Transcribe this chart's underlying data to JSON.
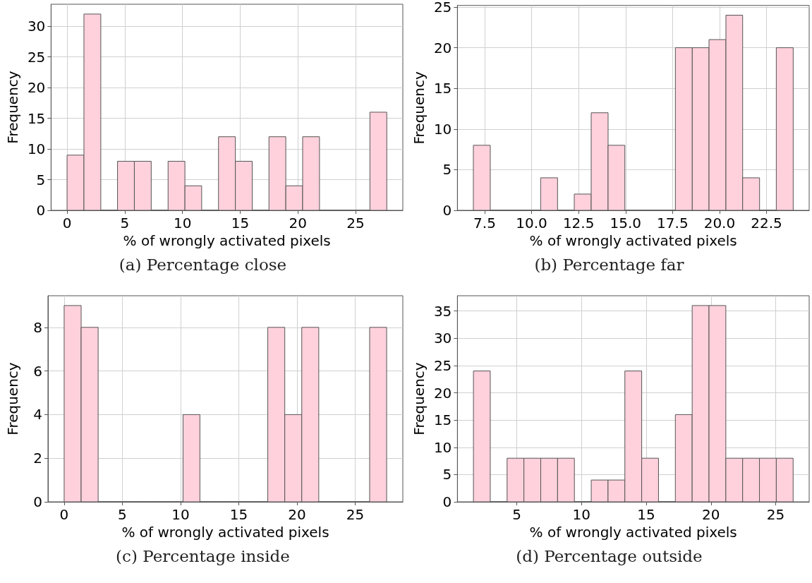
{
  "chart_data": [
    {
      "type": "histogram",
      "xlabel": "% of wrongly activated pixels",
      "ylabel": "Frequency",
      "annotations": [
        "(a) Percentage close"
      ],
      "color": "#ffd1dc",
      "grid": true,
      "bins": [
        0,
        1.46,
        2.92,
        4.37,
        5.83,
        7.29,
        8.75,
        10.21,
        11.66,
        13.12,
        14.58,
        16.04,
        17.49,
        18.95,
        20.41,
        21.87,
        23.33,
        24.78,
        26.24,
        27.7
      ],
      "values": [
        9,
        32,
        0,
        8,
        8,
        0,
        8,
        4,
        0,
        12,
        8,
        0,
        12,
        4,
        12,
        0,
        0,
        0,
        16
      ],
      "xlim": [
        -1.39,
        29.09
      ],
      "xticks": [
        0,
        5,
        10,
        15,
        20,
        25
      ],
      "ylim": [
        0,
        33.6
      ],
      "yticks": [
        0,
        5,
        10,
        15,
        20,
        25,
        30
      ]
    },
    {
      "type": "histogram",
      "xlabel": "% of wrongly activated pixels",
      "ylabel": "Frequency",
      "annotations": [
        "(b) Percentage far"
      ],
      "color": "#ffd1dc",
      "grid": true,
      "bins": [
        6.9,
        7.8,
        8.69,
        9.59,
        10.48,
        11.38,
        12.27,
        13.17,
        14.07,
        14.96,
        15.86,
        16.75,
        17.65,
        18.55,
        19.44,
        20.34,
        21.23,
        22.13,
        23.02,
        23.92
      ],
      "values": [
        8,
        0,
        0,
        0,
        4,
        0,
        2,
        12,
        8,
        0,
        0,
        0,
        20,
        20,
        21,
        24,
        4,
        0,
        20
      ],
      "xlim": [
        6.05,
        24.77
      ],
      "xticks": [
        7.5,
        {
          "value": 10,
          "label": "10.0"
        },
        12.5,
        {
          "value": 15,
          "label": "15.0"
        },
        17.5,
        {
          "value": 20,
          "label": "20.0"
        },
        22.5
      ],
      "ylim": [
        0,
        25.2
      ],
      "yticks": [
        0,
        5,
        10,
        15,
        20,
        25
      ]
    },
    {
      "type": "histogram",
      "xlabel": "% of wrongly activated pixels",
      "ylabel": "Frequency",
      "annotations": [
        "(c) Percentage inside"
      ],
      "color": "#ffd1dc",
      "grid": true,
      "bins": [
        0,
        1.46,
        2.92,
        4.37,
        5.83,
        7.29,
        8.75,
        10.21,
        11.66,
        13.12,
        14.58,
        16.04,
        17.49,
        18.95,
        20.41,
        21.87,
        23.33,
        24.78,
        26.24,
        27.7
      ],
      "values": [
        9,
        8,
        0,
        0,
        0,
        0,
        0,
        4,
        0,
        0,
        0,
        0,
        8,
        4,
        8,
        0,
        0,
        0,
        8
      ],
      "xlim": [
        -1.39,
        29.09
      ],
      "xticks": [
        0,
        5,
        10,
        15,
        20,
        25
      ],
      "ylim": [
        0,
        9.45
      ],
      "yticks": [
        0,
        2,
        4,
        6,
        8
      ]
    },
    {
      "type": "histogram",
      "xlabel": "% of wrongly activated pixels",
      "ylabel": "Frequency",
      "annotations": [
        "(d) Percentage outside"
      ],
      "color": "#ffd1dc",
      "grid": true,
      "bins": [
        1.65,
        2.95,
        4.25,
        5.55,
        6.85,
        8.15,
        9.45,
        10.75,
        12.05,
        13.35,
        14.65,
        15.95,
        17.25,
        18.55,
        19.85,
        21.15,
        22.45,
        23.75,
        25.05,
        26.35
      ],
      "values": [
        24,
        0,
        8,
        8,
        8,
        8,
        0,
        4,
        4,
        24,
        8,
        0,
        16,
        36,
        36,
        8,
        8,
        8,
        8
      ],
      "xlim": [
        0.41,
        27.59
      ],
      "xticks": [
        5,
        10,
        15,
        20,
        25
      ],
      "ylim": [
        0,
        37.8
      ],
      "yticks": [
        0,
        5,
        10,
        15,
        20,
        25,
        30,
        35
      ]
    }
  ]
}
